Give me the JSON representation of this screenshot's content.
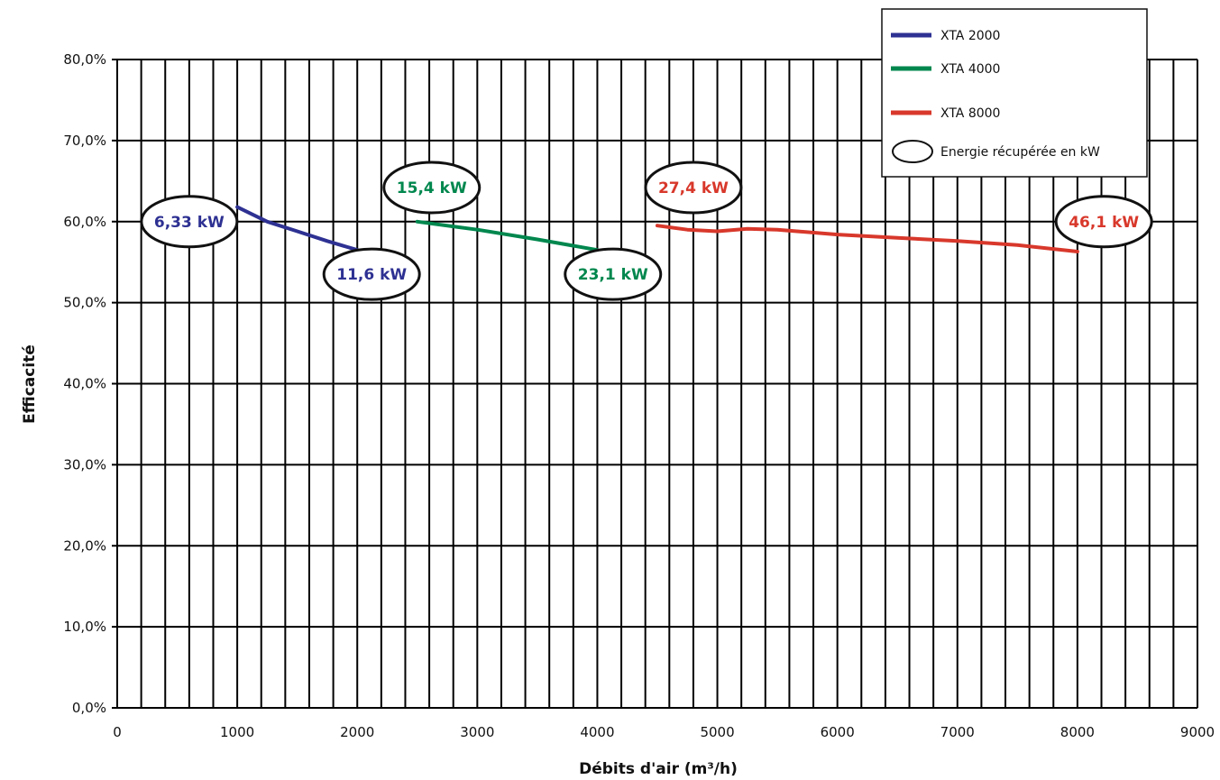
{
  "chart_data": {
    "type": "line",
    "xlabel": "Débits d'air (m³/h)",
    "ylabel": "Efficacité",
    "xlim": [
      0,
      9000
    ],
    "ylim": [
      0,
      80
    ],
    "x_ticks": [
      "0",
      "1000",
      "2000",
      "3000",
      "4000",
      "5000",
      "6000",
      "7000",
      "8000",
      "9000"
    ],
    "y_ticks": [
      "0,0%",
      "10,0%",
      "20,0%",
      "30,0%",
      "40,0%",
      "50,0%",
      "60,0%",
      "70,0%",
      "80,0%"
    ],
    "grid": true,
    "legend_position": "top-right",
    "series": [
      {
        "name": "XTA 2000",
        "color": "#2e3192",
        "points": [
          [
            1000,
            61.8
          ],
          [
            1250,
            60.0
          ],
          [
            1500,
            58.8
          ],
          [
            1750,
            57.6
          ],
          [
            2000,
            56.5
          ]
        ]
      },
      {
        "name": "XTA 4000",
        "color": "#00874e",
        "points": [
          [
            2500,
            60.0
          ],
          [
            3000,
            59.0
          ],
          [
            3500,
            57.8
          ],
          [
            4000,
            56.5
          ]
        ]
      },
      {
        "name": "XTA 8000",
        "color": "#d8382b",
        "points": [
          [
            4500,
            59.5
          ],
          [
            4750,
            59.0
          ],
          [
            5000,
            58.8
          ],
          [
            5250,
            59.1
          ],
          [
            5500,
            59.0
          ],
          [
            6000,
            58.4
          ],
          [
            6500,
            58.0
          ],
          [
            7000,
            57.6
          ],
          [
            7500,
            57.1
          ],
          [
            8000,
            56.3
          ]
        ]
      }
    ],
    "annotations": [
      {
        "text": "6,33 kW",
        "color": "#2e3192",
        "x": 600,
        "y": 60.0
      },
      {
        "text": "11,6 kW",
        "color": "#2e3192",
        "x": 2120,
        "y": 53.5
      },
      {
        "text": "15,4 kW",
        "color": "#00874e",
        "x": 2620,
        "y": 64.2
      },
      {
        "text": "23,1 kW",
        "color": "#00874e",
        "x": 4130,
        "y": 53.5
      },
      {
        "text": "27,4 kW",
        "color": "#d8382b",
        "x": 4800,
        "y": 64.2
      },
      {
        "text": "46,1 kW",
        "color": "#d8382b",
        "x": 8220,
        "y": 60.0
      }
    ],
    "legend_extra": "Energie récupérée en kW"
  }
}
